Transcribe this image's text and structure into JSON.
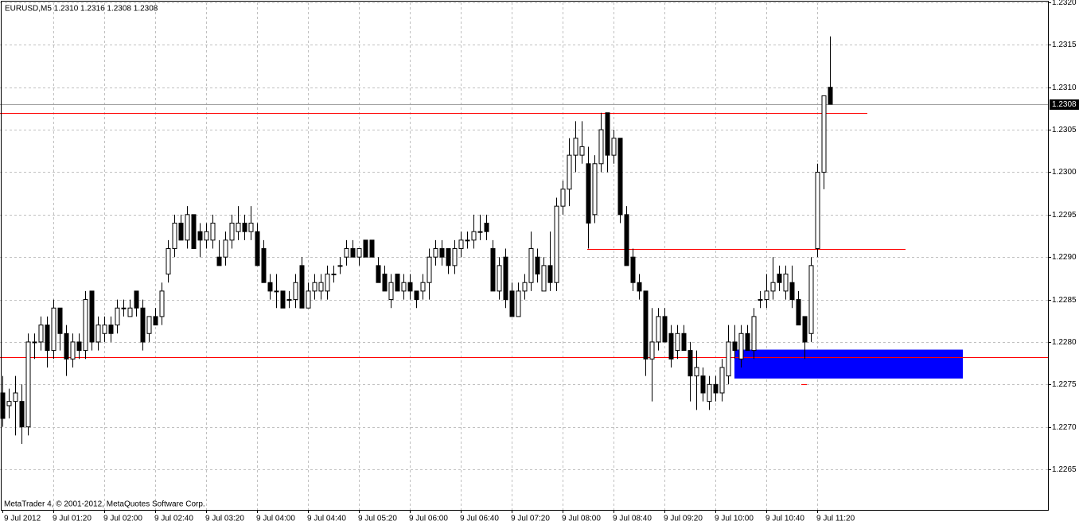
{
  "chart_data": {
    "type": "candlestick",
    "title": "EURUSD,M5  1.2310 1.2316 1.2308 1.2308",
    "footer": "MetaTrader 4, © 2001-2012, MetaQuotes Software Corp.",
    "categories": [
      "9 Jul 2012",
      null,
      null,
      null,
      null,
      null,
      null,
      null,
      "9 Jul 01:20",
      null,
      null,
      null,
      null,
      null,
      null,
      null,
      "9 Jul 02:00",
      null,
      null,
      null,
      null,
      null,
      null,
      null,
      "9 Jul 02:40",
      null,
      null,
      null,
      null,
      null,
      null,
      null,
      "9 Jul 03:20",
      null,
      null,
      null,
      null,
      null,
      null,
      null,
      "9 Jul 04:00",
      null,
      null,
      null,
      null,
      null,
      null,
      null,
      "9 Jul 04:40",
      null,
      null,
      null,
      null,
      null,
      null,
      null,
      "9 Jul 05:20",
      null,
      null,
      null,
      null,
      null,
      null,
      null,
      "9 Jul 06:00",
      null,
      null,
      null,
      null,
      null,
      null,
      null,
      "9 Jul 06:40",
      null,
      null,
      null,
      null,
      null,
      null,
      null,
      "9 Jul 07:20",
      null,
      null,
      null,
      null,
      null,
      null,
      null,
      "9 Jul 08:00",
      null,
      null,
      null,
      null,
      null,
      null,
      null,
      "9 Jul 08:40",
      null,
      null,
      null,
      null,
      null,
      null,
      null,
      "9 Jul 09:20",
      null,
      null,
      null,
      null,
      null,
      null,
      null,
      "9 Jul 10:00",
      null,
      null,
      null,
      null,
      null,
      null,
      null,
      "9 Jul 10:40",
      null,
      null,
      null,
      null,
      null,
      null,
      null,
      "9 Jul 11:20",
      null,
      null
    ],
    "open": [
      1.2274,
      1.22725,
      1.2273,
      1.2273,
      1.227,
      1.228,
      1.228,
      1.2282,
      1.2279,
      1.2284,
      1.2281,
      1.2278,
      1.228,
      1.2279,
      1.2286,
      1.228,
      1.2281,
      1.2282,
      1.2282,
      1.2284,
      1.2283,
      1.2286,
      1.2284,
      1.2281,
      1.2283,
      1.2283,
      1.2288,
      1.2291,
      1.2294,
      1.2292,
      1.2295,
      1.2293,
      1.2292,
      1.2292,
      1.229,
      1.229,
      1.2292,
      1.2293,
      1.2294,
      1.2293,
      1.2293,
      1.2291,
      1.2287,
      1.2286,
      1.2286,
      1.2285,
      1.2285,
      1.2289,
      1.2284,
      1.2286,
      1.2286,
      1.2286,
      1.2288,
      1.2289,
      1.229,
      1.2291,
      1.229,
      1.2292,
      1.2292,
      1.2289,
      1.2288,
      1.2285,
      1.2288,
      1.2286,
      1.2287,
      1.2286,
      1.2286,
      1.2287,
      1.229,
      1.2291,
      1.2291,
      1.2289,
      1.2291,
      1.2292,
      1.2292,
      1.2293,
      1.2294,
      1.2291,
      1.2286,
      1.229,
      1.2286,
      1.2283,
      1.2286,
      1.2287,
      1.229,
      1.2286,
      1.2289,
      1.2287,
      1.2296,
      1.2298,
      1.2302,
      1.2302,
      1.2301,
      1.2295,
      1.2301,
      1.2307,
      1.2302,
      1.2304,
      1.2295,
      1.229,
      1.2287,
      1.2286,
      1.2278,
      1.228,
      1.2283,
      1.2281,
      1.2279,
      1.2281,
      1.2279,
      1.2276,
      1.2276,
      1.2273,
      1.2275,
      1.2274,
      1.2276,
      1.228,
      1.2278,
      1.2281,
      1.2279,
      1.2285,
      1.2285,
      1.2286,
      1.2288,
      1.2286,
      1.2287,
      1.2285,
      1.2283,
      1.2281,
      1.2291,
      1.23,
      1.231
    ],
    "high": [
      1.2276,
      1.22745,
      1.2276,
      1.2275,
      1.2281,
      1.2281,
      1.2283,
      1.2283,
      1.2285,
      1.2284,
      1.2282,
      1.2281,
      1.2281,
      1.2286,
      1.2286,
      1.2283,
      1.2283,
      1.2283,
      1.2285,
      1.2285,
      1.2285,
      1.2286,
      1.2285,
      1.2283,
      1.2284,
      1.2287,
      1.2292,
      1.2295,
      1.2295,
      1.2296,
      1.2295,
      1.2294,
      1.2294,
      1.2295,
      1.2292,
      1.2293,
      1.2295,
      1.2296,
      1.2295,
      1.2296,
      1.2294,
      1.2292,
      1.2288,
      1.2288,
      1.2286,
      1.2286,
      1.2288,
      1.229,
      1.2287,
      1.2288,
      1.2288,
      1.2289,
      1.2289,
      1.229,
      1.2292,
      1.2292,
      1.2291,
      1.2292,
      1.2292,
      1.229,
      1.2289,
      1.2288,
      1.2288,
      1.2288,
      1.2288,
      1.2286,
      1.2288,
      1.2291,
      1.2292,
      1.2292,
      1.2291,
      1.2292,
      1.2293,
      1.2293,
      1.2295,
      1.2295,
      1.2295,
      1.2292,
      1.229,
      1.2291,
      1.2287,
      1.2287,
      1.2288,
      1.2293,
      1.2291,
      1.229,
      1.2293,
      1.2297,
      1.2299,
      1.2304,
      1.2306,
      1.2306,
      1.2303,
      1.2302,
      1.2307,
      1.2307,
      1.2305,
      1.2304,
      1.2296,
      1.2291,
      1.2288,
      1.2286,
      1.2284,
      1.2284,
      1.2284,
      1.2282,
      1.2282,
      1.2282,
      1.228,
      1.2279,
      1.2277,
      1.2276,
      1.2276,
      1.2278,
      1.2282,
      1.2282,
      1.2282,
      1.2282,
      1.2284,
      1.2286,
      1.2288,
      1.229,
      1.2289,
      1.2289,
      1.2289,
      1.2286,
      1.2283,
      1.229,
      1.2301,
      1.2309,
      1.2316
    ],
    "low": [
      1.227,
      1.2271,
      1.2269,
      1.2268,
      1.2269,
      1.2278,
      1.2279,
      1.2277,
      1.2278,
      1.2279,
      1.2276,
      1.2277,
      1.2278,
      1.2278,
      1.2279,
      1.2279,
      1.228,
      1.228,
      1.2281,
      1.2283,
      1.2283,
      1.2283,
      1.2279,
      1.228,
      1.2282,
      1.2282,
      1.2287,
      1.229,
      1.2292,
      1.2291,
      1.2291,
      1.229,
      1.2291,
      1.2291,
      1.2289,
      1.2289,
      1.2291,
      1.2292,
      1.2292,
      1.2292,
      1.2289,
      1.2287,
      1.2285,
      1.2284,
      1.2284,
      1.2284,
      1.2284,
      1.2284,
      1.2284,
      1.2285,
      1.2285,
      1.2285,
      1.2287,
      1.2288,
      1.2289,
      1.229,
      1.2289,
      1.229,
      1.229,
      1.2287,
      1.2286,
      1.2284,
      1.2286,
      1.2285,
      1.2285,
      1.2284,
      1.2285,
      1.2285,
      1.2289,
      1.2289,
      1.2288,
      1.2288,
      1.229,
      1.2291,
      1.2291,
      1.2292,
      1.2292,
      1.2286,
      1.2285,
      1.2284,
      1.2283,
      1.2283,
      1.2285,
      1.2286,
      1.2287,
      1.2286,
      1.2286,
      1.2286,
      1.2295,
      1.2296,
      1.23,
      1.2301,
      1.2291,
      1.2294,
      1.23,
      1.23,
      1.2301,
      1.2294,
      1.2289,
      1.2286,
      1.2285,
      1.2276,
      1.2273,
      1.2279,
      1.228,
      1.2277,
      1.2278,
      1.2279,
      1.2273,
      1.2272,
      1.2273,
      1.2272,
      1.2273,
      1.2273,
      1.2275,
      1.2278,
      1.2277,
      1.2279,
      1.2278,
      1.2284,
      1.2284,
      1.2285,
      1.2286,
      1.2285,
      1.2284,
      1.2282,
      1.2278,
      1.228,
      1.229,
      1.2298,
      1.2308
    ],
    "close": [
      1.2271,
      1.2273,
      1.2274,
      1.227,
      1.228,
      1.228,
      1.2282,
      1.2279,
      1.2284,
      1.2281,
      1.2278,
      1.228,
      1.2279,
      1.2285,
      1.228,
      1.2282,
      1.2282,
      1.2281,
      1.2284,
      1.2284,
      1.2284,
      1.2284,
      1.228,
      1.2283,
      1.2282,
      1.2286,
      1.2291,
      1.2294,
      1.2292,
      1.2295,
      1.2291,
      1.2292,
      1.2293,
      1.2294,
      1.2289,
      1.2292,
      1.2294,
      1.2294,
      1.2293,
      1.2294,
      1.2289,
      1.2287,
      1.2286,
      1.2286,
      1.2284,
      1.2285,
      1.2287,
      1.2284,
      1.2286,
      1.2287,
      1.2287,
      1.2288,
      1.2288,
      1.2289,
      1.2291,
      1.229,
      1.2291,
      1.229,
      1.229,
      1.2287,
      1.2286,
      1.2287,
      1.2286,
      1.2287,
      1.2286,
      1.2285,
      1.2287,
      1.229,
      1.2291,
      1.229,
      1.2289,
      1.2291,
      1.2292,
      1.2292,
      1.2293,
      1.2293,
      1.2293,
      1.2286,
      1.2289,
      1.2285,
      1.2283,
      1.2286,
      1.2287,
      1.2291,
      1.2288,
      1.2289,
      1.2287,
      1.2296,
      1.2298,
      1.2302,
      1.2304,
      1.2303,
      1.2294,
      1.2301,
      1.2305,
      1.2302,
      1.2304,
      1.2295,
      1.2289,
      1.2287,
      1.2286,
      1.2278,
      1.228,
      1.2283,
      1.228,
      1.2278,
      1.2281,
      1.2279,
      1.2276,
      1.2277,
      1.2274,
      1.2275,
      1.2274,
      1.2277,
      1.228,
      1.2279,
      1.2281,
      1.2279,
      1.2283,
      1.2285,
      1.2286,
      1.2287,
      1.2287,
      1.2288,
      1.2285,
      1.2282,
      1.228,
      1.2289,
      1.23,
      1.2309,
      1.2308
    ],
    "ylim": [
      1.226,
      1.232
    ],
    "yticks": [
      {
        "value": 1.2265,
        "label": "1.2265"
      },
      {
        "value": 1.227,
        "label": "1.2270"
      },
      {
        "value": 1.2275,
        "label": "1.2275"
      },
      {
        "value": 1.228,
        "label": "1.2280"
      },
      {
        "value": 1.2285,
        "label": "1.2285"
      },
      {
        "value": 1.229,
        "label": "1.2290"
      },
      {
        "value": 1.2295,
        "label": "1.2295"
      },
      {
        "value": 1.23,
        "label": "1.2300"
      },
      {
        "value": 1.2305,
        "label": "1.2305"
      },
      {
        "value": 1.231,
        "label": "1.2310"
      },
      {
        "value": 1.2315,
        "label": "1.2315"
      },
      {
        "value": 1.232,
        "label": "1.2320"
      }
    ],
    "current_price": {
      "value": 1.2308,
      "label": "1.2308"
    },
    "levels": [
      1.2307,
      1.2291,
      1.22782,
      1.2275
    ],
    "level_color": "#ff0000",
    "zone": {
      "from": 1.22757,
      "to": 1.22791,
      "color": "#0000ff"
    },
    "bull_color": "#ffffff",
    "bear_color": "#000000",
    "grid": true
  }
}
